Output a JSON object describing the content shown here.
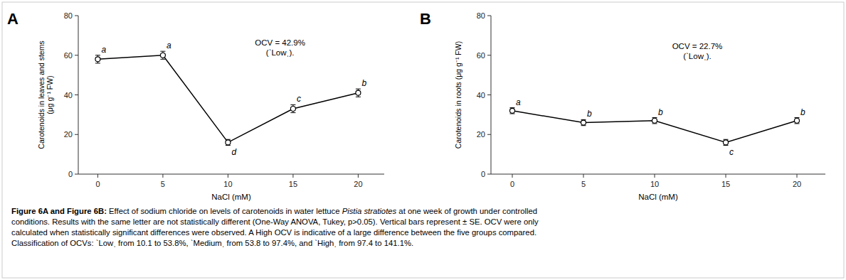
{
  "chart_data": [
    {
      "type": "line",
      "panel_label": "A",
      "x_label": "NaCl (mM)",
      "y_label": "Carotenoids in leaves and stems\n(μg g⁻¹ FW)",
      "x": [
        0,
        5,
        10,
        15,
        20
      ],
      "series": [
        {
          "color": "#000000",
          "marker": "circle",
          "values": [
            58,
            60,
            16,
            33,
            41
          ],
          "errors": [
            2,
            2,
            1.5,
            2,
            2
          ],
          "letters": [
            "a",
            "a",
            "d",
            "c",
            "b"
          ]
        }
      ],
      "annotations": [
        {
          "text": "OCV = 42.9%\n(ˋLowˌ).",
          "x": 14,
          "y": 64
        }
      ],
      "xlim": [
        -1.5,
        22
      ],
      "xticks": [
        0,
        5,
        10,
        15,
        20
      ],
      "ylim": [
        0,
        80
      ],
      "yticks": [
        0,
        20,
        40,
        60,
        80
      ],
      "grid": false
    },
    {
      "type": "line",
      "panel_label": "B",
      "x_label": "NaCl (mM)",
      "y_label": "Carotenoids in roots (μg g⁻¹ FW)",
      "x": [
        0,
        5,
        10,
        15,
        20
      ],
      "series": [
        {
          "color": "#000000",
          "marker": "circle",
          "values": [
            32,
            26,
            27,
            16,
            27
          ],
          "errors": [
            1.5,
            1.5,
            1.5,
            1.5,
            1.5
          ],
          "letters": [
            "a",
            "b",
            "b",
            "c",
            "b"
          ]
        }
      ],
      "annotations": [
        {
          "text": "OCV = 22.7%\n(ˋLowˌ).",
          "x": 13,
          "y": 62
        }
      ],
      "xlim": [
        -1.5,
        22
      ],
      "xticks": [
        0,
        5,
        10,
        15,
        20
      ],
      "ylim": [
        0,
        80
      ],
      "yticks": [
        0,
        20,
        40,
        60,
        80
      ],
      "grid": false
    }
  ],
  "caption": {
    "bold": "Figure 6A and Figure 6B:",
    "normal": " Effect of sodium chloride on levels of carotenoids in water lettuce ",
    "italic": "Pistia stratiotes",
    "rest": " at one week of growth under controlled\nconditions. Results with the same letter are not statistically different (One-Way ANOVA, Tukey, p>0.05). Vertical bars represent ± SE. OCV were only\ncalculated when statistically significant differences were observed. A High OCV is indicative of a large difference between the five groups compared.\nClassification of OCVs: ˋLowˌ from 10.1 to 53.8%, ˋMediumˌ from 53.8 to 97.4%, and ˋHighˌ from 97.4 to 141.1%."
  }
}
